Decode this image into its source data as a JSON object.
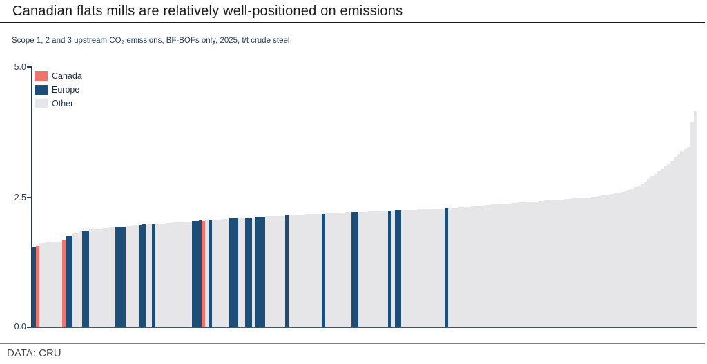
{
  "header": {
    "title": "Canadian flats mills are relatively well-positioned on emissions"
  },
  "footer": {
    "source": "DATA: CRU"
  },
  "chart_data": {
    "type": "bar",
    "title": "Canadian flats mills are relatively well-positioned on emissions",
    "subtitle": "Scope 1, 2 and 3 upstream CO₂ emissions, BF-BOFs only, 2025, t/t crude steel",
    "ylabel": "t/t crude steel",
    "ylim": [
      0,
      5
    ],
    "yticks": [
      5.0,
      2.5,
      0.0
    ],
    "ytick_labels": [
      "5.0",
      "2.5",
      "0.0"
    ],
    "grid": false,
    "legend_position": "top-left-inside",
    "legend": [
      {
        "key": "ca",
        "label": "Canada",
        "color": "#ef756c"
      },
      {
        "key": "eu",
        "label": "Europe",
        "color": "#1d4e78"
      },
      {
        "key": "ot",
        "label": "Other",
        "color": "#e6e6e8"
      }
    ],
    "category_colors": {
      "ca": "#ef756c",
      "eu": "#1d4e78",
      "ot": "#e6e6e8"
    },
    "note": "Cost-curve style chart: ~200 mills sorted ascending by emissions intensity",
    "bars": [
      [
        1.55,
        "eu"
      ],
      [
        1.57,
        "ca"
      ],
      [
        1.62,
        "ot"
      ],
      [
        1.62,
        "ot"
      ],
      [
        1.63,
        "ot"
      ],
      [
        1.63,
        "ot"
      ],
      [
        1.64,
        "ot"
      ],
      [
        1.64,
        "ot"
      ],
      [
        1.65,
        "ot"
      ],
      [
        1.67,
        "ca"
      ],
      [
        1.76,
        "eu"
      ],
      [
        1.77,
        "eu"
      ],
      [
        1.8,
        "ot"
      ],
      [
        1.82,
        "ot"
      ],
      [
        1.84,
        "ot"
      ],
      [
        1.85,
        "eu"
      ],
      [
        1.86,
        "eu"
      ],
      [
        1.88,
        "ot"
      ],
      [
        1.89,
        "ot"
      ],
      [
        1.9,
        "ot"
      ],
      [
        1.9,
        "ot"
      ],
      [
        1.91,
        "ot"
      ],
      [
        1.91,
        "ot"
      ],
      [
        1.92,
        "ot"
      ],
      [
        1.93,
        "ot"
      ],
      [
        1.93,
        "eu"
      ],
      [
        1.94,
        "eu"
      ],
      [
        1.94,
        "eu"
      ],
      [
        1.95,
        "ot"
      ],
      [
        1.95,
        "ot"
      ],
      [
        1.96,
        "ot"
      ],
      [
        1.96,
        "ot"
      ],
      [
        1.96,
        "eu"
      ],
      [
        1.97,
        "eu"
      ],
      [
        1.97,
        "ot"
      ],
      [
        1.97,
        "ot"
      ],
      [
        1.98,
        "eu"
      ],
      [
        1.98,
        "ot"
      ],
      [
        1.99,
        "ot"
      ],
      [
        1.99,
        "ot"
      ],
      [
        2.0,
        "ot"
      ],
      [
        2.0,
        "ot"
      ],
      [
        2.01,
        "ot"
      ],
      [
        2.01,
        "ot"
      ],
      [
        2.02,
        "ot"
      ],
      [
        2.02,
        "ot"
      ],
      [
        2.03,
        "ot"
      ],
      [
        2.03,
        "ot"
      ],
      [
        2.04,
        "eu"
      ],
      [
        2.04,
        "eu"
      ],
      [
        2.05,
        "eu"
      ],
      [
        2.04,
        "ca"
      ],
      [
        2.05,
        "ot"
      ],
      [
        2.06,
        "eu"
      ],
      [
        2.06,
        "ot"
      ],
      [
        2.07,
        "ot"
      ],
      [
        2.07,
        "ot"
      ],
      [
        2.08,
        "ot"
      ],
      [
        2.08,
        "ot"
      ],
      [
        2.09,
        "eu"
      ],
      [
        2.09,
        "eu"
      ],
      [
        2.1,
        "eu"
      ],
      [
        2.1,
        "ot"
      ],
      [
        2.1,
        "ot"
      ],
      [
        2.11,
        "eu"
      ],
      [
        2.11,
        "eu"
      ],
      [
        2.11,
        "ot"
      ],
      [
        2.12,
        "eu"
      ],
      [
        2.12,
        "eu"
      ],
      [
        2.12,
        "eu"
      ],
      [
        2.13,
        "ot"
      ],
      [
        2.13,
        "ot"
      ],
      [
        2.13,
        "ot"
      ],
      [
        2.14,
        "ot"
      ],
      [
        2.14,
        "ot"
      ],
      [
        2.14,
        "ot"
      ],
      [
        2.15,
        "eu"
      ],
      [
        2.15,
        "ot"
      ],
      [
        2.15,
        "ot"
      ],
      [
        2.16,
        "ot"
      ],
      [
        2.16,
        "ot"
      ],
      [
        2.16,
        "ot"
      ],
      [
        2.17,
        "ot"
      ],
      [
        2.17,
        "ot"
      ],
      [
        2.17,
        "ot"
      ],
      [
        2.18,
        "ot"
      ],
      [
        2.18,
        "ot"
      ],
      [
        2.18,
        "eu"
      ],
      [
        2.19,
        "ot"
      ],
      [
        2.19,
        "ot"
      ],
      [
        2.19,
        "ot"
      ],
      [
        2.2,
        "ot"
      ],
      [
        2.2,
        "ot"
      ],
      [
        2.2,
        "ot"
      ],
      [
        2.21,
        "ot"
      ],
      [
        2.21,
        "ot"
      ],
      [
        2.21,
        "eu"
      ],
      [
        2.22,
        "eu"
      ],
      [
        2.22,
        "ot"
      ],
      [
        2.22,
        "ot"
      ],
      [
        2.22,
        "ot"
      ],
      [
        2.23,
        "ot"
      ],
      [
        2.23,
        "ot"
      ],
      [
        2.23,
        "ot"
      ],
      [
        2.23,
        "ot"
      ],
      [
        2.24,
        "ot"
      ],
      [
        2.24,
        "ot"
      ],
      [
        2.24,
        "eu"
      ],
      [
        2.24,
        "ot"
      ],
      [
        2.25,
        "eu"
      ],
      [
        2.25,
        "eu"
      ],
      [
        2.25,
        "ot"
      ],
      [
        2.26,
        "ot"
      ],
      [
        2.26,
        "ot"
      ],
      [
        2.26,
        "ot"
      ],
      [
        2.26,
        "ot"
      ],
      [
        2.27,
        "ot"
      ],
      [
        2.27,
        "ot"
      ],
      [
        2.27,
        "ot"
      ],
      [
        2.27,
        "ot"
      ],
      [
        2.28,
        "ot"
      ],
      [
        2.28,
        "ot"
      ],
      [
        2.28,
        "ot"
      ],
      [
        2.28,
        "ot"
      ],
      [
        2.29,
        "eu"
      ],
      [
        2.29,
        "ot"
      ],
      [
        2.3,
        "ot"
      ],
      [
        2.3,
        "ot"
      ],
      [
        2.31,
        "ot"
      ],
      [
        2.31,
        "ot"
      ],
      [
        2.32,
        "ot"
      ],
      [
        2.32,
        "ot"
      ],
      [
        2.33,
        "ot"
      ],
      [
        2.33,
        "ot"
      ],
      [
        2.34,
        "ot"
      ],
      [
        2.34,
        "ot"
      ],
      [
        2.35,
        "ot"
      ],
      [
        2.35,
        "ot"
      ],
      [
        2.36,
        "ot"
      ],
      [
        2.36,
        "ot"
      ],
      [
        2.37,
        "ot"
      ],
      [
        2.37,
        "ot"
      ],
      [
        2.38,
        "ot"
      ],
      [
        2.38,
        "ot"
      ],
      [
        2.39,
        "ot"
      ],
      [
        2.39,
        "ot"
      ],
      [
        2.4,
        "ot"
      ],
      [
        2.4,
        "ot"
      ],
      [
        2.41,
        "ot"
      ],
      [
        2.41,
        "ot"
      ],
      [
        2.42,
        "ot"
      ],
      [
        2.42,
        "ot"
      ],
      [
        2.43,
        "ot"
      ],
      [
        2.43,
        "ot"
      ],
      [
        2.44,
        "ot"
      ],
      [
        2.44,
        "ot"
      ],
      [
        2.45,
        "ot"
      ],
      [
        2.45,
        "ot"
      ],
      [
        2.46,
        "ot"
      ],
      [
        2.46,
        "ot"
      ],
      [
        2.47,
        "ot"
      ],
      [
        2.47,
        "ot"
      ],
      [
        2.48,
        "ot"
      ],
      [
        2.48,
        "ot"
      ],
      [
        2.49,
        "ot"
      ],
      [
        2.49,
        "ot"
      ],
      [
        2.5,
        "ot"
      ],
      [
        2.5,
        "ot"
      ],
      [
        2.51,
        "ot"
      ],
      [
        2.51,
        "ot"
      ],
      [
        2.52,
        "ot"
      ],
      [
        2.53,
        "ot"
      ],
      [
        2.54,
        "ot"
      ],
      [
        2.55,
        "ot"
      ],
      [
        2.56,
        "ot"
      ],
      [
        2.57,
        "ot"
      ],
      [
        2.58,
        "ot"
      ],
      [
        2.6,
        "ot"
      ],
      [
        2.62,
        "ot"
      ],
      [
        2.64,
        "ot"
      ],
      [
        2.66,
        "ot"
      ],
      [
        2.69,
        "ot"
      ],
      [
        2.72,
        "ot"
      ],
      [
        2.76,
        "ot"
      ],
      [
        2.8,
        "ot"
      ],
      [
        2.85,
        "ot"
      ],
      [
        2.9,
        "ot"
      ],
      [
        2.95,
        "ot"
      ],
      [
        3.0,
        "ot"
      ],
      [
        3.05,
        "ot"
      ],
      [
        3.1,
        "ot"
      ],
      [
        3.15,
        "ot"
      ],
      [
        3.2,
        "ot"
      ],
      [
        3.27,
        "ot"
      ],
      [
        3.33,
        "ot"
      ],
      [
        3.38,
        "ot"
      ],
      [
        3.42,
        "ot"
      ],
      [
        3.46,
        "ot"
      ],
      [
        3.95,
        "ot"
      ],
      [
        4.15,
        "ot"
      ]
    ]
  }
}
